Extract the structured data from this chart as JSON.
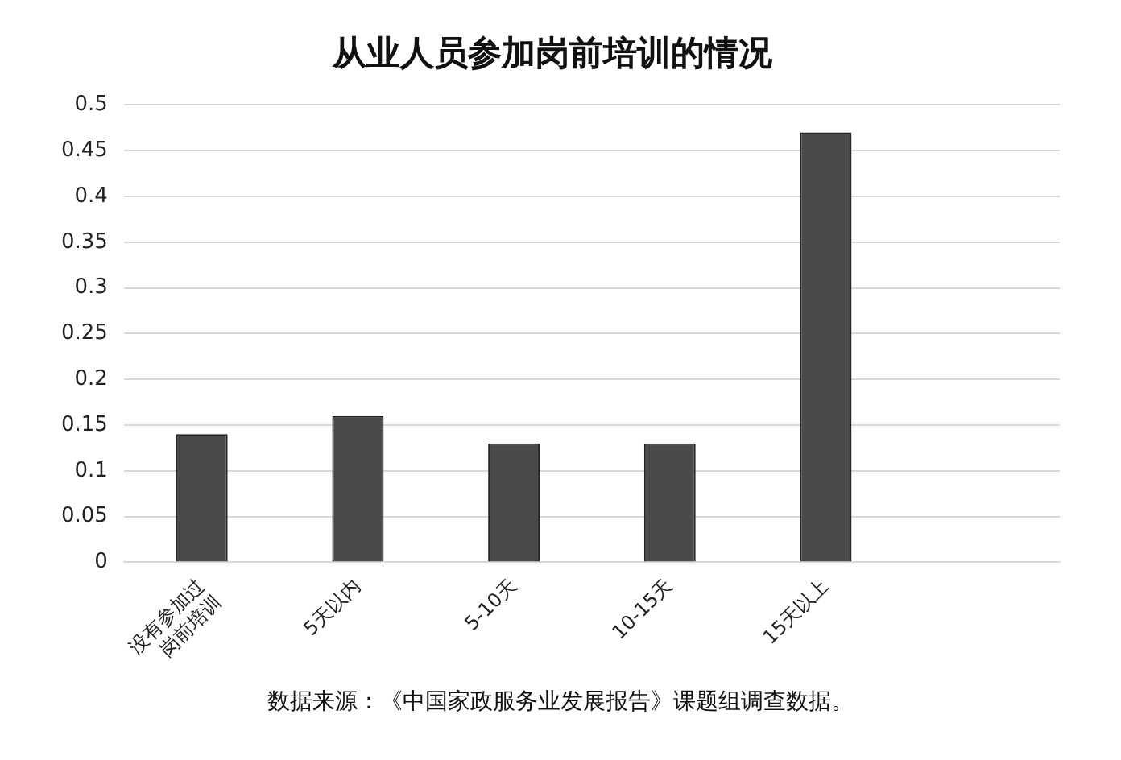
{
  "chart_data": {
    "type": "bar",
    "title": "从业人员参加岗前培训的情况",
    "categories": [
      "没有参加过\n岗前培训",
      "5天以内",
      "5-10天",
      "10-15天",
      "15天以上",
      null
    ],
    "values": [
      0.14,
      0.16,
      0.13,
      0.13,
      0.47,
      null
    ],
    "color": "#4a4a4a",
    "ylim": [
      0,
      0.5
    ],
    "yticks": [
      0,
      0.05,
      0.1,
      0.15,
      0.2,
      0.25,
      0.3,
      0.35,
      0.4,
      0.45,
      0.5
    ],
    "grid": "y",
    "legend": false,
    "annotations": [
      "数据来源：《中国家政服务业发展报告》课题组调查数据。"
    ]
  }
}
